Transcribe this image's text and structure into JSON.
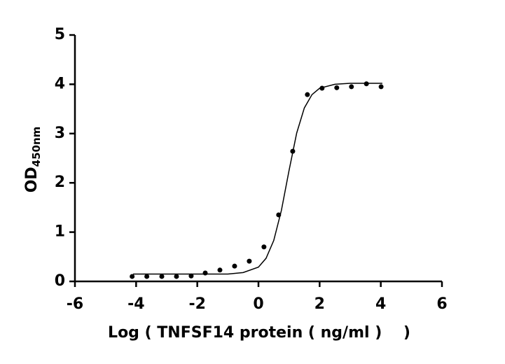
{
  "chart_data": {
    "type": "scatter",
    "ylabel": "OD",
    "ylabel_subscript": "450nm",
    "xlabel": "Log ( TNFSF14 protein ( ng/ml )    )",
    "xlim": [
      -6,
      6
    ],
    "xticks": [
      -6,
      -4,
      -2,
      0,
      2,
      4,
      6
    ],
    "ylim": [
      0,
      5
    ],
    "yticks": [
      0,
      1,
      2,
      3,
      4,
      5
    ],
    "grid": false,
    "series": [
      {
        "mode": "markers",
        "color": "#000000",
        "x": [
          -4.13,
          -3.65,
          -3.16,
          -2.68,
          -2.2,
          -1.74,
          -1.26,
          -0.78,
          -0.3,
          0.18,
          0.66,
          1.12,
          1.6,
          2.08,
          2.56,
          3.04,
          3.53,
          4.01
        ],
        "values": [
          0.1,
          0.1,
          0.1,
          0.1,
          0.11,
          0.17,
          0.23,
          0.31,
          0.41,
          0.7,
          1.35,
          2.64,
          3.79,
          3.92,
          3.93,
          3.95,
          4.01,
          3.95
        ]
      },
      {
        "mode": "line",
        "color": "#000000",
        "x": [
          -4.1,
          -3,
          -2,
          -1,
          -0.5,
          0,
          0.25,
          0.5,
          0.75,
          1,
          1.25,
          1.5,
          1.75,
          2,
          2.5,
          3,
          4.05
        ],
        "values": [
          0.15,
          0.15,
          0.15,
          0.15,
          0.18,
          0.29,
          0.47,
          0.83,
          1.44,
          2.25,
          3.01,
          3.52,
          3.79,
          3.92,
          4.0,
          4.02,
          4.02
        ]
      }
    ]
  }
}
